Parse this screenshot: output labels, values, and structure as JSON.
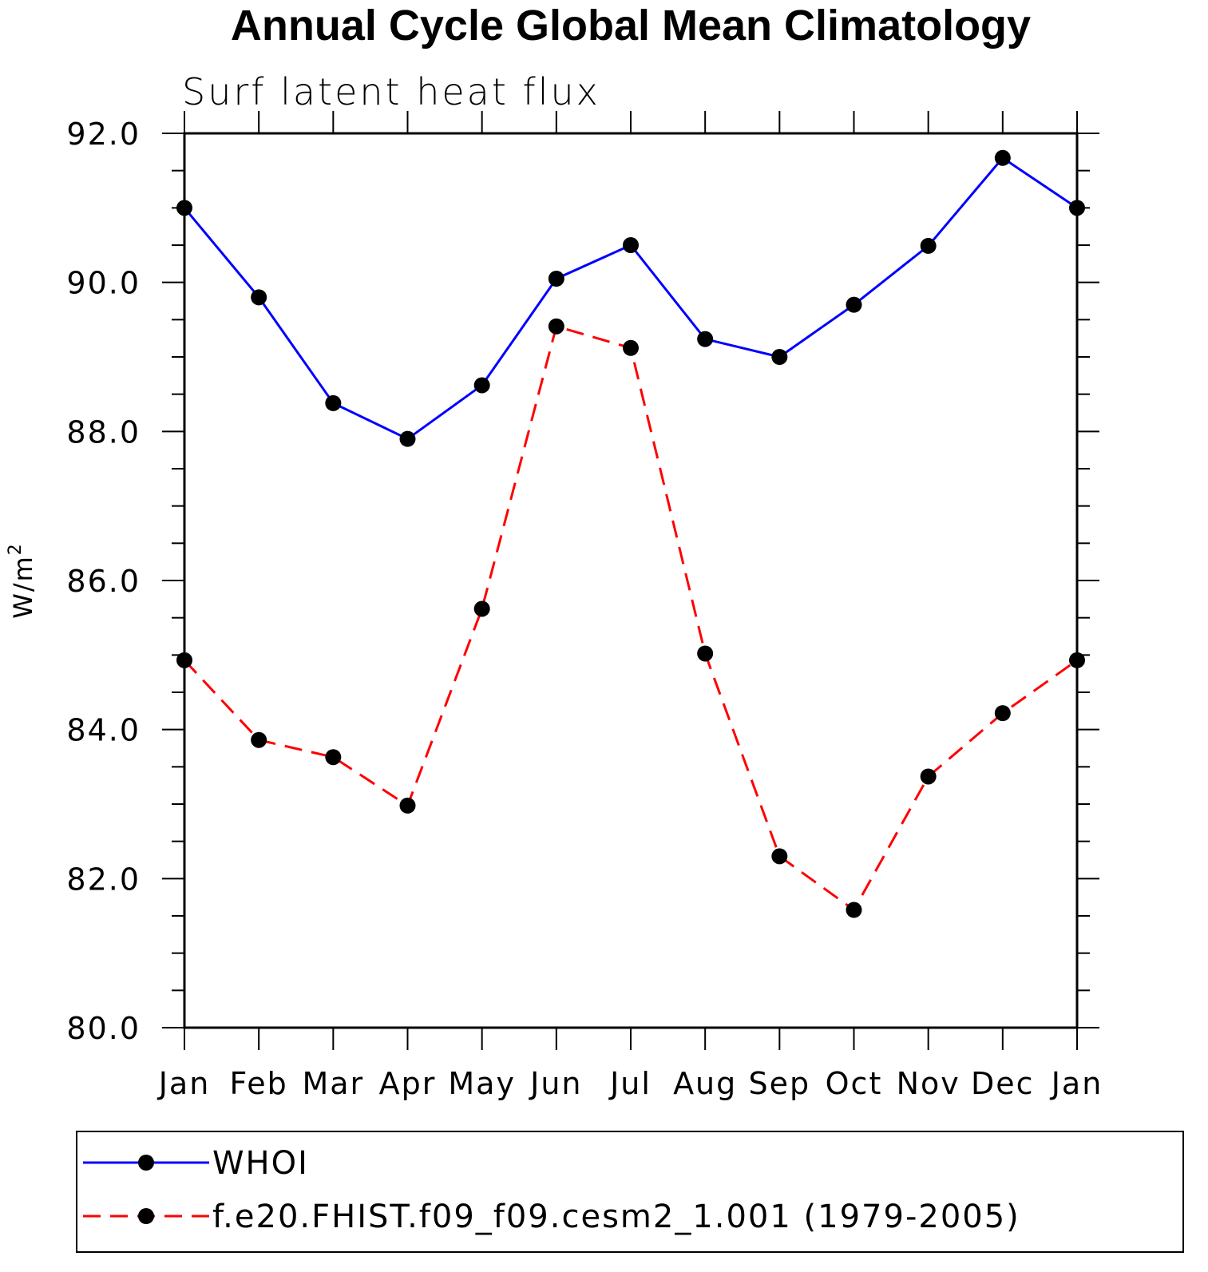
{
  "chart_data": {
    "type": "line",
    "title": "Annual Cycle Global Mean Climatology",
    "subtitle": "Surf latent heat flux",
    "ylabel": "W/m",
    "ylabel_sup": "2",
    "xlabel": "",
    "categories": [
      "Jan",
      "Feb",
      "Mar",
      "Apr",
      "May",
      "Jun",
      "Jul",
      "Aug",
      "Sep",
      "Oct",
      "Nov",
      "Dec",
      "Jan"
    ],
    "ylim": [
      80.0,
      92.0
    ],
    "yticks": [
      "80.0",
      "82.0",
      "84.0",
      "86.0",
      "88.0",
      "90.0",
      "92.0"
    ],
    "grid": false,
    "legend_position": "bottom",
    "series": [
      {
        "name": "WHOI",
        "color": "#0000ff",
        "dash": "solid",
        "marker": "filled-circle",
        "values": [
          91.0,
          89.8,
          88.38,
          87.9,
          88.62,
          90.05,
          90.5,
          89.24,
          89.0,
          89.7,
          90.49,
          91.67,
          91.0
        ]
      },
      {
        "name": "f.e20.FHIST.f09_f09.cesm2_1.001 (1979-2005)",
        "color": "#ff0000",
        "dash": "dashed",
        "marker": "filled-circle",
        "values": [
          84.93,
          83.86,
          83.63,
          82.98,
          85.62,
          89.41,
          89.12,
          85.02,
          82.3,
          81.58,
          83.37,
          84.22,
          84.93
        ]
      }
    ]
  }
}
